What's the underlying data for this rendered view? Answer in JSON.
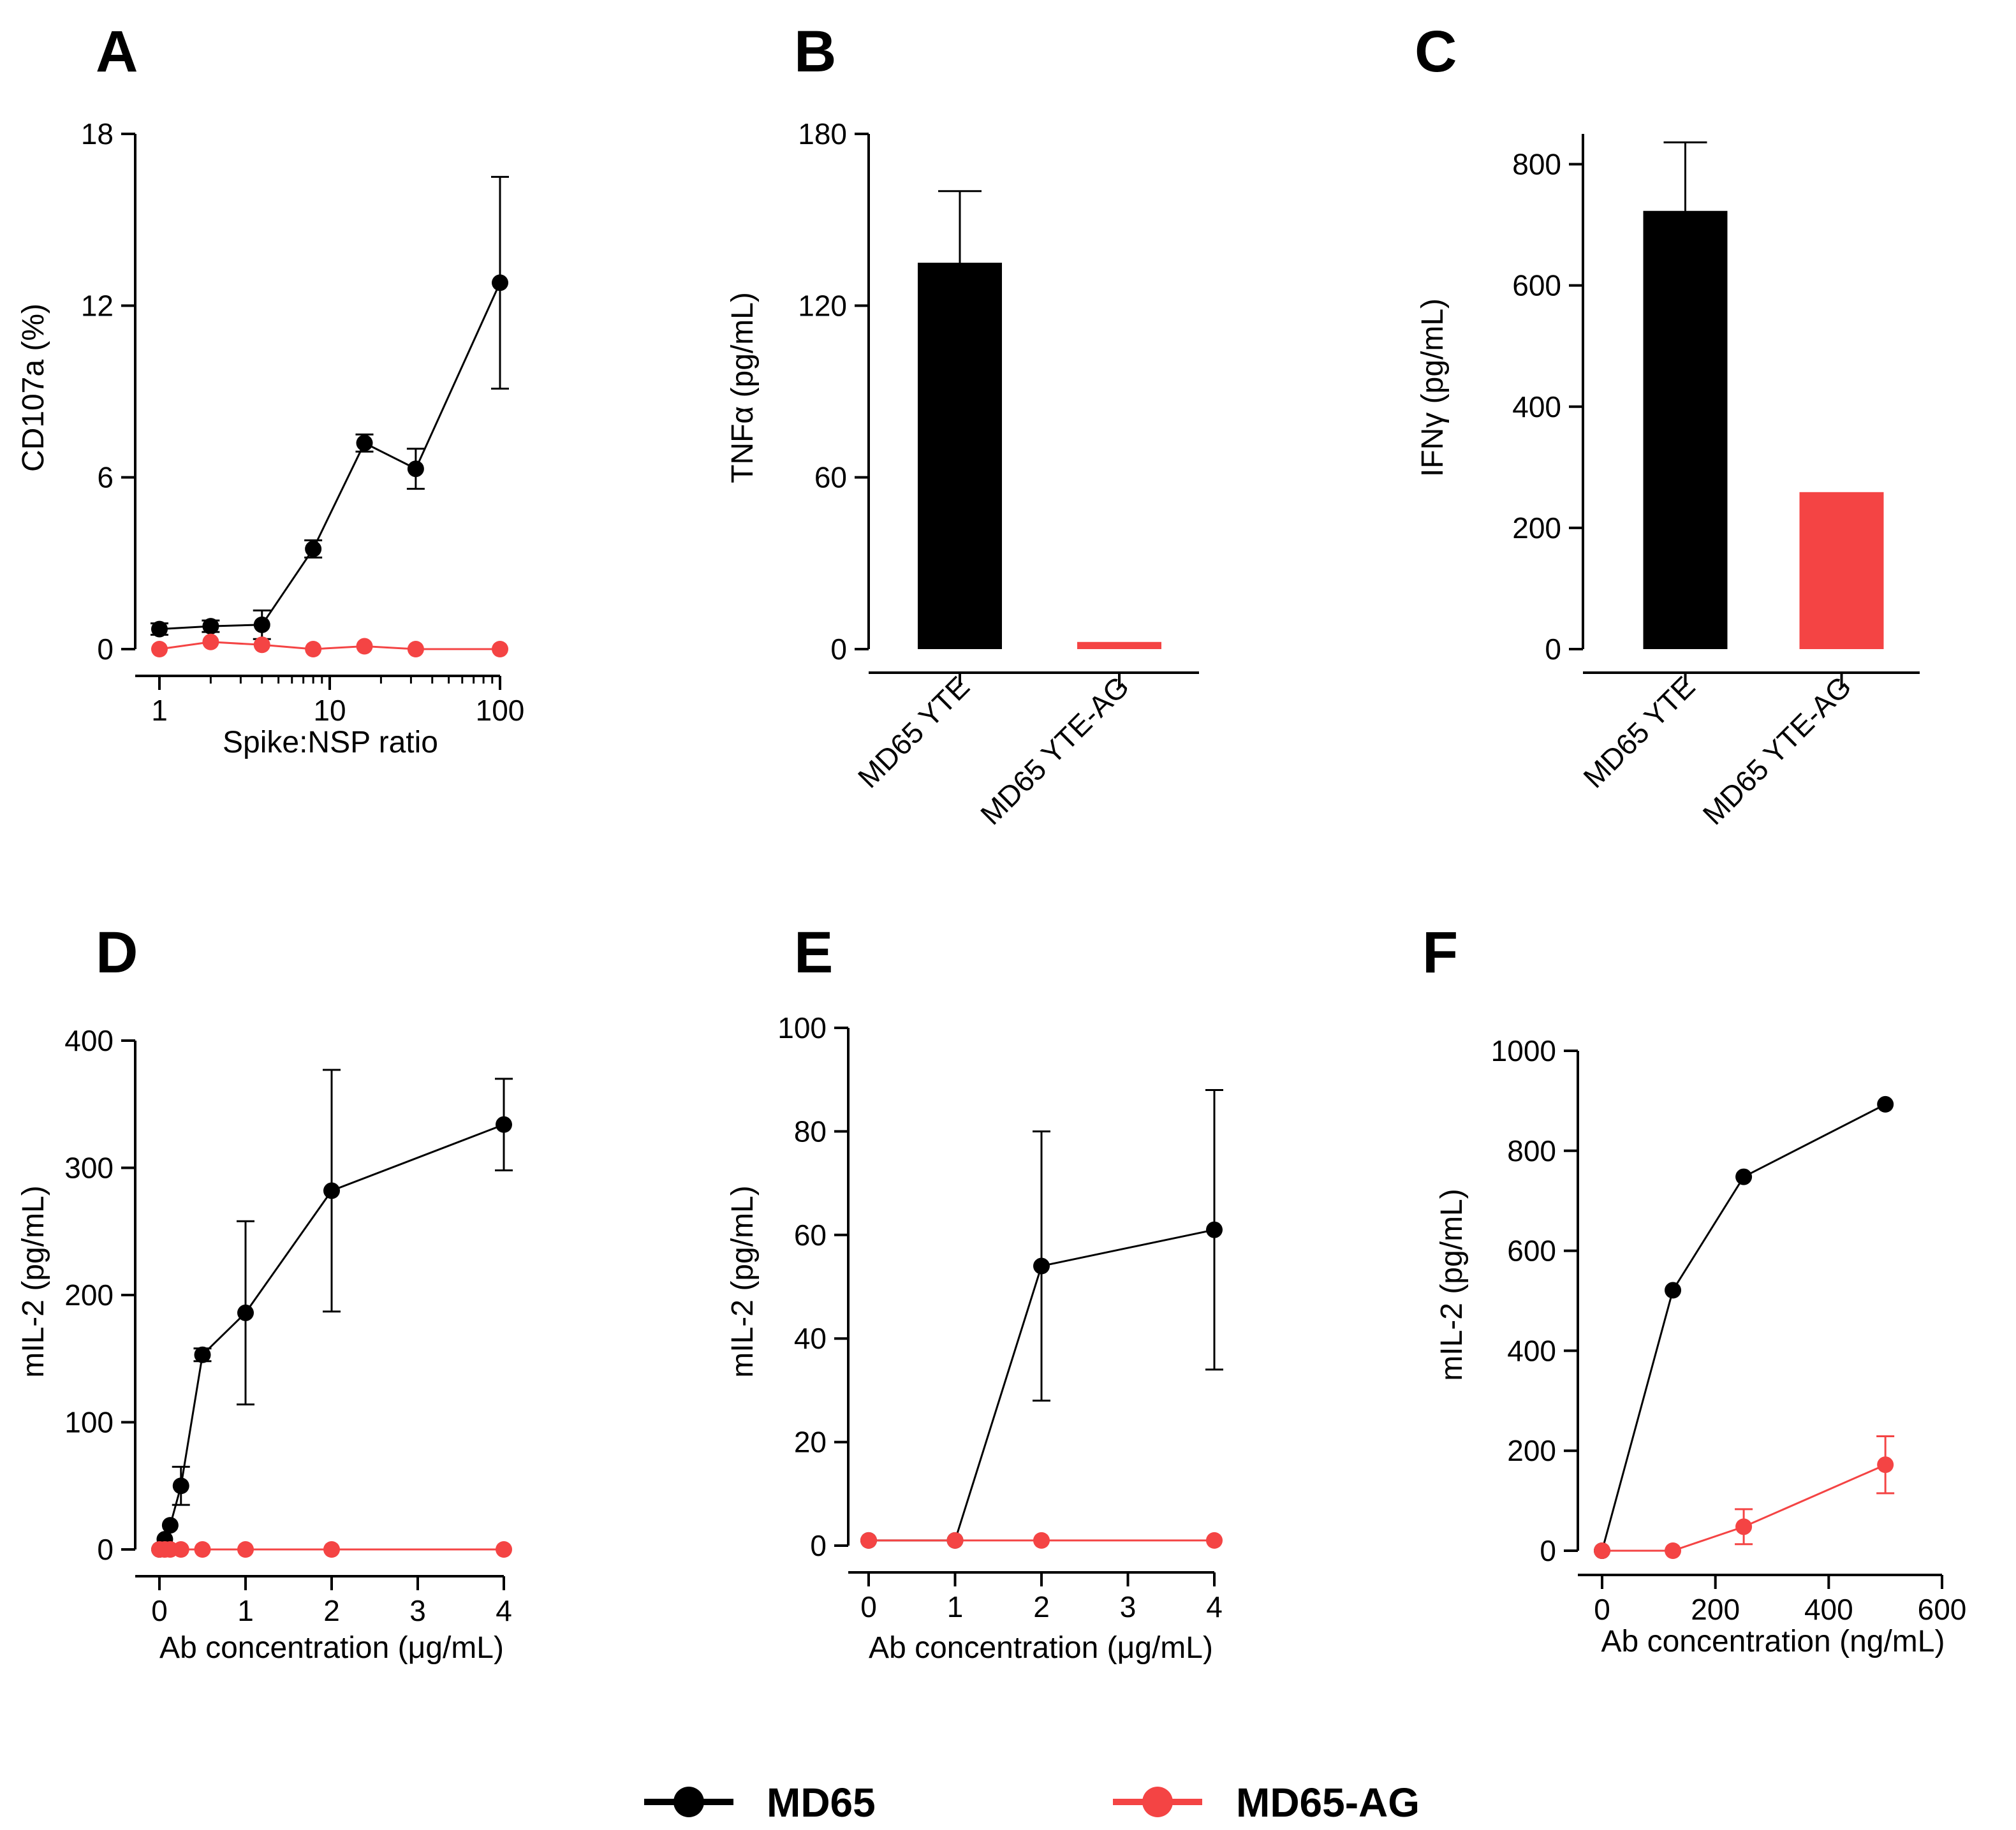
{
  "colors": {
    "md65": "#000000",
    "md65ag": "#f44444"
  },
  "legend": [
    {
      "label": "MD65",
      "color": "#000000"
    },
    {
      "label": "MD65-AG",
      "color": "#f44444"
    }
  ],
  "chart_data": [
    {
      "id": "A",
      "type": "line",
      "xscale": "log",
      "xlabel": "Spike:NSP ratio",
      "ylabel": "CD107a (%)",
      "ylim": [
        0,
        18
      ],
      "yticks": [
        0,
        6,
        12,
        18
      ],
      "yticklabels": [
        "0",
        "6",
        "12",
        "18"
      ],
      "xlim": [
        1,
        100
      ],
      "xticks": [
        1,
        10,
        100
      ],
      "xticklabels": [
        "1",
        "10",
        "100"
      ],
      "xminor": [
        2,
        3,
        4,
        5,
        6,
        7,
        8,
        9,
        20,
        30,
        40,
        50,
        60,
        70,
        80,
        90
      ],
      "series": [
        {
          "name": "MD65",
          "x": [
            1,
            2,
            4,
            8,
            16,
            32,
            100
          ],
          "y": [
            0.7,
            0.8,
            0.85,
            3.5,
            7.2,
            6.3,
            12.8
          ],
          "err": [
            0.2,
            0.2,
            0.5,
            0.3,
            0.3,
            0.7,
            3.7
          ]
        },
        {
          "name": "MD65-AG",
          "x": [
            1,
            2,
            4,
            8,
            16,
            32,
            100
          ],
          "y": [
            0,
            0.25,
            0.15,
            0,
            0.1,
            0,
            0
          ],
          "err": [
            0,
            0,
            0,
            0,
            0,
            0,
            0
          ]
        }
      ]
    },
    {
      "id": "B",
      "type": "bar",
      "ylabel": "TNFα (pg/mL)",
      "ylim": [
        0,
        180
      ],
      "yticks": [
        0,
        60,
        120,
        180
      ],
      "yticklabels": [
        "0",
        "60",
        "120",
        "180"
      ],
      "categories": [
        "MD65 YTE",
        "MD65 YTE-AG"
      ],
      "values": [
        135,
        2.5
      ],
      "err": [
        25,
        0
      ]
    },
    {
      "id": "C",
      "type": "bar",
      "ylabel": "IFNγ (pg/mL)",
      "ylim": [
        0,
        850
      ],
      "yticks": [
        0,
        200,
        400,
        600,
        800
      ],
      "yticklabels": [
        "0",
        "200",
        "400",
        "600",
        "800"
      ],
      "categories": [
        "MD65 YTE",
        "MD65 YTE-AG"
      ],
      "values": [
        723,
        259
      ],
      "err": [
        113,
        0
      ]
    },
    {
      "id": "D",
      "type": "line",
      "xlabel": "Ab concentration (μg/mL)",
      "ylabel": "mIL-2 (pg/mL)",
      "ylim": [
        0,
        400
      ],
      "yticks": [
        0,
        100,
        200,
        300,
        400
      ],
      "yticklabels": [
        "0",
        "100",
        "200",
        "300",
        "400"
      ],
      "xlim": [
        0,
        4
      ],
      "xticks": [
        0,
        1,
        2,
        3,
        4
      ],
      "xticklabels": [
        "0",
        "1",
        "2",
        "3",
        "4"
      ],
      "series": [
        {
          "name": "MD65",
          "x": [
            0,
            0.0625,
            0.125,
            0.25,
            0.5,
            1,
            2,
            4
          ],
          "y": [
            0,
            8,
            19,
            50,
            153,
            186,
            282,
            334
          ],
          "err": [
            0,
            0,
            0,
            15,
            5,
            72,
            95,
            36
          ]
        },
        {
          "name": "MD65-AG",
          "x": [
            0,
            0.0625,
            0.125,
            0.25,
            0.5,
            1,
            2,
            4
          ],
          "y": [
            0,
            0,
            0,
            0,
            0,
            0,
            0,
            0
          ],
          "err": [
            0,
            0,
            0,
            0,
            0,
            0,
            0,
            0
          ]
        }
      ]
    },
    {
      "id": "E",
      "type": "line",
      "xlabel": "Ab concentration (μg/mL)",
      "ylabel": "mIL-2 (pg/mL)",
      "ylim": [
        0,
        100
      ],
      "yticks": [
        0,
        20,
        40,
        60,
        80,
        100
      ],
      "yticklabels": [
        "0",
        "20",
        "40",
        "60",
        "80",
        "100"
      ],
      "xlim": [
        0,
        4
      ],
      "xticks": [
        0,
        1,
        2,
        3,
        4
      ],
      "xticklabels": [
        "0",
        "1",
        "2",
        "3",
        "4"
      ],
      "series": [
        {
          "name": "MD65",
          "x": [
            0,
            1,
            2,
            4
          ],
          "y": [
            1,
            1,
            54,
            61
          ],
          "err": [
            0,
            0,
            26,
            27
          ]
        },
        {
          "name": "MD65-AG",
          "x": [
            0,
            1,
            2,
            4
          ],
          "y": [
            1,
            1,
            1,
            1
          ],
          "err": [
            0,
            0,
            0,
            0
          ]
        }
      ]
    },
    {
      "id": "F",
      "type": "line",
      "xlabel": "Ab concentration (ng/mL)",
      "ylabel": "mIL-2 (pg/mL)",
      "ylim": [
        0,
        1000
      ],
      "yticks": [
        0,
        200,
        400,
        600,
        800,
        1000
      ],
      "yticklabels": [
        "0",
        "200",
        "400",
        "600",
        "800",
        "1000"
      ],
      "xlim": [
        0,
        600
      ],
      "xticks": [
        0,
        200,
        400,
        600
      ],
      "xticklabels": [
        "0",
        "200",
        "400",
        "600"
      ],
      "series": [
        {
          "name": "MD65",
          "x": [
            0,
            125,
            250,
            500
          ],
          "y": [
            0,
            521,
            748,
            893
          ],
          "err": [
            0,
            0,
            0,
            0
          ]
        },
        {
          "name": "MD65-AG",
          "x": [
            0,
            125,
            250,
            500
          ],
          "y": [
            0,
            0,
            48,
            172
          ],
          "err": [
            0,
            0,
            35,
            57
          ]
        }
      ]
    }
  ]
}
